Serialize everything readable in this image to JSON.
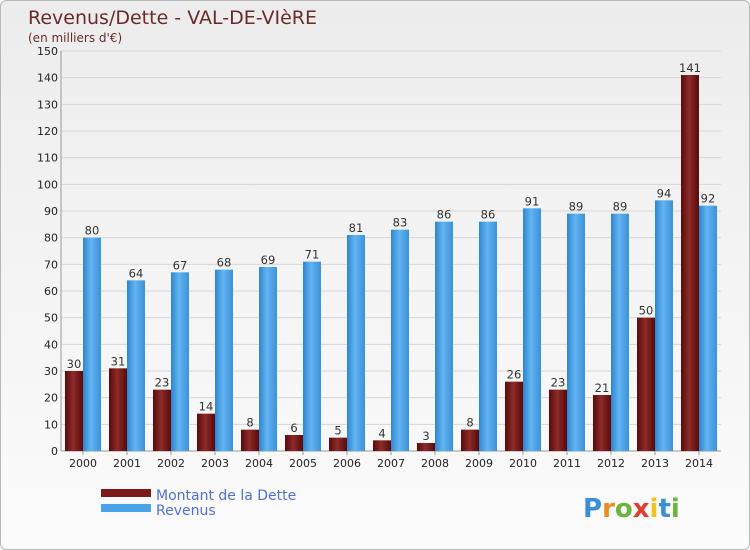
{
  "chart_data": {
    "type": "bar",
    "title": "Revenus/Dette - VAL-DE-VIèRE",
    "subtitle": "(en milliers d'€)",
    "categories": [
      "2000",
      "2001",
      "2002",
      "2003",
      "2004",
      "2005",
      "2006",
      "2007",
      "2008",
      "2009",
      "2010",
      "2011",
      "2012",
      "2013",
      "2014"
    ],
    "series": [
      {
        "name": "Montant de la Dette",
        "color": "#7b1a1a",
        "values": [
          30,
          31,
          23,
          14,
          8,
          6,
          5,
          4,
          3,
          8,
          26,
          23,
          21,
          50,
          141
        ]
      },
      {
        "name": "Revenus",
        "color": "#4aa3e8",
        "values": [
          80,
          64,
          67,
          68,
          69,
          71,
          81,
          83,
          86,
          86,
          91,
          89,
          89,
          94,
          92
        ]
      }
    ],
    "ylim": [
      0,
      150
    ],
    "yticks": [
      0,
      10,
      20,
      30,
      40,
      50,
      60,
      70,
      80,
      90,
      100,
      110,
      120,
      130,
      140,
      150
    ],
    "grid": true,
    "legend_position": "bottom-left"
  },
  "brand": {
    "letters": [
      "P",
      "r",
      "o",
      "x",
      "i",
      "t",
      "i"
    ],
    "colors": [
      "#3b8fd6",
      "#f08a1c",
      "#6ab63a",
      "#e53b2c",
      "#f0c419",
      "#3b8fd6",
      "#6ab63a"
    ]
  }
}
